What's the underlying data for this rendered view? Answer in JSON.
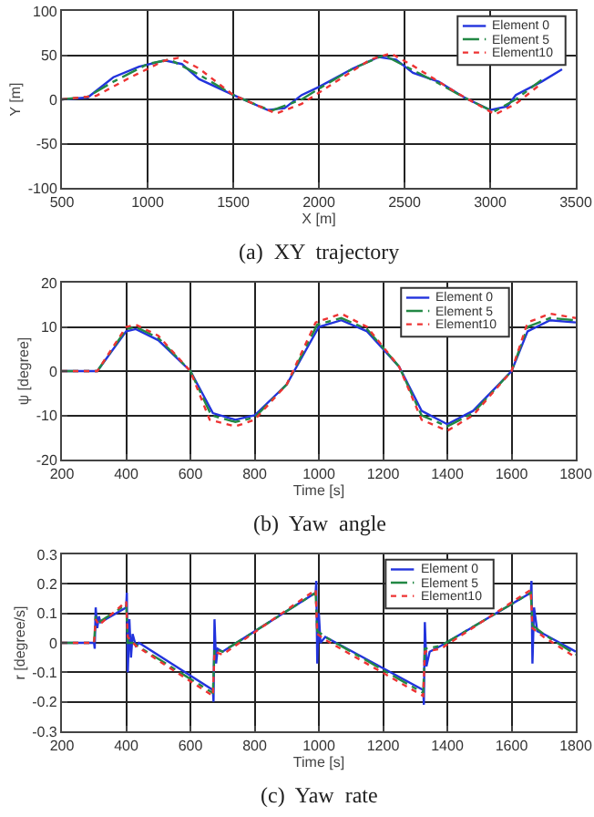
{
  "chart_data": [
    {
      "type": "line",
      "xlabel": "X [m]",
      "ylabel": "Y [m]",
      "annotations": [
        "(a)  XY  trajectory"
      ],
      "xlim": [
        500,
        3500
      ],
      "xticks": [
        500,
        1000,
        1500,
        2000,
        2500,
        3000,
        3500
      ],
      "ylim": [
        -100,
        100
      ],
      "yticks": [
        -100,
        -50,
        0,
        50,
        100
      ],
      "grid": true,
      "legend": "top right",
      "series": [
        {
          "name": "Element 0",
          "color": "#2233dd",
          "line_style": "solid",
          "x": [
            500,
            650,
            800,
            950,
            1100,
            1200,
            1300,
            1500,
            1700,
            1800,
            1900,
            2000,
            2200,
            2350,
            2450,
            2550,
            2700,
            2850,
            3000,
            3100,
            3150,
            3300,
            3420
          ],
          "values": [
            0,
            2,
            25,
            37,
            44,
            40,
            23,
            5,
            -12,
            -10,
            5,
            14,
            35,
            48,
            45,
            30,
            20,
            2,
            -12,
            -8,
            5,
            20,
            34
          ]
        },
        {
          "name": "Element 5",
          "color": "#228844",
          "line_style": "dashed",
          "x": [
            500,
            650,
            800,
            1000,
            1130,
            1300,
            1500,
            1720,
            1900,
            2000,
            2200,
            2380,
            2500,
            2700,
            2850,
            3020,
            3150,
            3300
          ],
          "values": [
            0,
            3,
            20,
            40,
            45,
            28,
            5,
            -13,
            0,
            12,
            35,
            50,
            38,
            18,
            2,
            -14,
            0,
            22
          ]
        },
        {
          "name": "Element10",
          "color": "#ee3333",
          "line_style": "dotted",
          "x": [
            500,
            700,
            900,
            1100,
            1180,
            1300,
            1500,
            1750,
            1900,
            2100,
            2300,
            2420,
            2550,
            2800,
            3030,
            3150,
            3280
          ],
          "values": [
            0,
            4,
            25,
            44,
            47,
            35,
            5,
            -16,
            -5,
            20,
            45,
            52,
            38,
            8,
            -17,
            -5,
            15
          ]
        }
      ]
    },
    {
      "type": "line",
      "xlabel": "Time [s]",
      "ylabel": "ψ [degree]",
      "annotations": [
        "(b)  Yaw  angle"
      ],
      "xlim": [
        200,
        1800
      ],
      "xticks": [
        200,
        400,
        600,
        800,
        1000,
        1200,
        1400,
        1600,
        1800
      ],
      "ylim": [
        -20,
        20
      ],
      "yticks": [
        -20,
        -10,
        0,
        10,
        20
      ],
      "grid": true,
      "legend": "top right",
      "series": [
        {
          "name": "Element 0",
          "color": "#2233dd",
          "line_style": "solid",
          "x": [
            200,
            310,
            400,
            430,
            500,
            600,
            670,
            740,
            800,
            900,
            1000,
            1070,
            1150,
            1250,
            1320,
            1400,
            1480,
            1600,
            1650,
            1720,
            1800
          ],
          "values": [
            0,
            0,
            9,
            9.5,
            7,
            0,
            -9.5,
            -11,
            -10,
            -3,
            10,
            11.5,
            9,
            1,
            -9,
            -12,
            -9,
            0,
            9,
            11.5,
            11
          ]
        },
        {
          "name": "Element 5",
          "color": "#228844",
          "line_style": "dashed",
          "x": [
            200,
            310,
            400,
            430,
            500,
            600,
            665,
            740,
            800,
            900,
            995,
            1070,
            1150,
            1250,
            1320,
            1400,
            1480,
            1600,
            1650,
            1720,
            1800
          ],
          "values": [
            0,
            0,
            9.5,
            10,
            7.5,
            0,
            -10,
            -11.5,
            -10.5,
            -3,
            10.5,
            12,
            9.5,
            1,
            -10,
            -12.5,
            -9.5,
            0,
            10,
            12,
            11.5
          ]
        },
        {
          "name": "Element10",
          "color": "#ee3333",
          "line_style": "dotted",
          "x": [
            200,
            310,
            400,
            430,
            500,
            600,
            660,
            740,
            800,
            900,
            990,
            1070,
            1150,
            1250,
            1320,
            1400,
            1480,
            1600,
            1650,
            1720,
            1800
          ],
          "values": [
            0,
            0,
            10,
            10.5,
            8,
            0,
            -11,
            -12.5,
            -11,
            -3,
            11,
            13,
            10,
            1,
            -11,
            -13.5,
            -10,
            0,
            11,
            13,
            12
          ]
        }
      ]
    },
    {
      "type": "line",
      "xlabel": "Time [s]",
      "ylabel": "r [degree/s]",
      "annotations": [
        "(c)  Yaw  rate"
      ],
      "xlim": [
        200,
        1800
      ],
      "xticks": [
        200,
        400,
        600,
        800,
        1000,
        1200,
        1400,
        1600,
        1800
      ],
      "ylim": [
        -0.3,
        0.3
      ],
      "yticks": [
        -0.3,
        -0.2,
        -0.1,
        0,
        0.1,
        0.2,
        0.3
      ],
      "grid": true,
      "legend": "top right",
      "series": [
        {
          "name": "Element 0",
          "color": "#2233dd",
          "line_style": "solid",
          "x": [
            200,
            300,
            302,
            305,
            310,
            315,
            320,
            400,
            402,
            405,
            410,
            415,
            420,
            430,
            440,
            670,
            672,
            675,
            680,
            685,
            700,
            990,
            992,
            995,
            1000,
            1005,
            1020,
            1325,
            1327,
            1330,
            1335,
            1345,
            1380,
            1660,
            1662,
            1665,
            1670,
            1680,
            1700,
            1800
          ],
          "values": [
            0,
            0,
            -0.02,
            0.12,
            0.05,
            0.09,
            0.07,
            0.12,
            0.17,
            -0.1,
            0.08,
            -0.05,
            0.03,
            -0.01,
            0,
            -0.16,
            -0.2,
            0.08,
            -0.07,
            -0.02,
            -0.03,
            0.17,
            0.21,
            -0.07,
            0.1,
            0,
            0.02,
            -0.16,
            -0.21,
            0.07,
            -0.08,
            -0.03,
            -0.01,
            0.17,
            0.21,
            -0.07,
            0.12,
            0.04,
            0.03,
            -0.03
          ]
        },
        {
          "name": "Element 5",
          "color": "#228844",
          "line_style": "dashed",
          "x": [
            200,
            300,
            305,
            315,
            400,
            405,
            420,
            670,
            675,
            700,
            990,
            995,
            1020,
            1325,
            1330,
            1380,
            1660,
            1665,
            1700,
            1800
          ],
          "values": [
            0,
            0,
            0.09,
            0.07,
            0.13,
            0,
            0,
            -0.17,
            -0.02,
            -0.03,
            0.17,
            0.04,
            0.02,
            -0.17,
            -0.02,
            -0.01,
            0.17,
            0.06,
            0.03,
            -0.04
          ]
        },
        {
          "name": "Element10",
          "color": "#ee3333",
          "line_style": "dotted",
          "x": [
            200,
            300,
            305,
            315,
            400,
            405,
            430,
            670,
            675,
            700,
            990,
            995,
            1020,
            1325,
            1330,
            1380,
            1660,
            1665,
            1700,
            1800
          ],
          "values": [
            0,
            0,
            0.08,
            0.06,
            0.14,
            0.02,
            -0.01,
            -0.18,
            -0.03,
            -0.04,
            0.18,
            0.03,
            0.01,
            -0.18,
            -0.03,
            -0.02,
            0.18,
            0.05,
            0.02,
            -0.05
          ]
        }
      ]
    }
  ]
}
